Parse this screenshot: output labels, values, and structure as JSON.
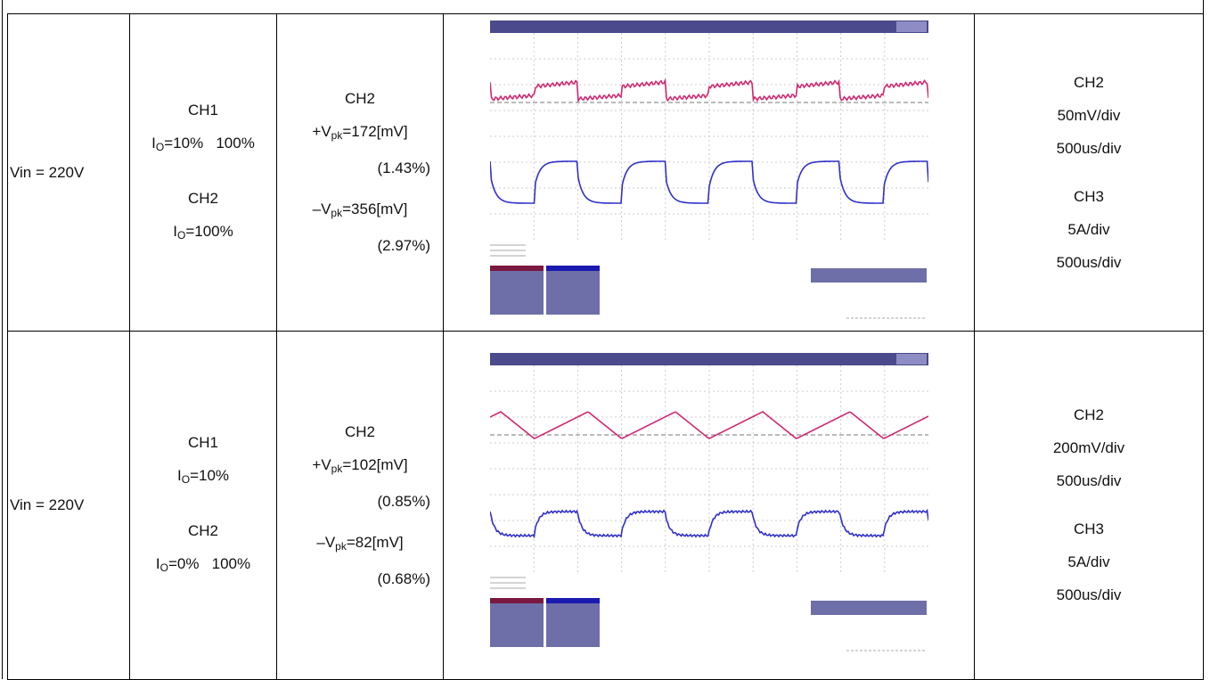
{
  "rows": [
    {
      "vin": "Vin = 220V",
      "load": [
        [
          {
            "text": "CH1"
          }
        ],
        [
          {
            "text": "I"
          },
          {
            "sub": "O"
          },
          {
            "text": "=10%   100%"
          }
        ],
        [
          {
            "text": "CH2"
          }
        ],
        [
          {
            "text": "I"
          },
          {
            "sub": "O"
          },
          {
            "text": "=100%"
          }
        ]
      ],
      "result": [
        [
          {
            "text": "CH2"
          }
        ],
        [
          {
            "text": "+V"
          },
          {
            "sub": "pk"
          },
          {
            "text": "=172[mV]"
          }
        ],
        [
          {
            "text": "(1.43%)"
          }
        ],
        [
          {
            "text": "–V"
          },
          {
            "sub": "pk"
          },
          {
            "text": "=356[mV]"
          }
        ],
        [
          {
            "text": "(2.97%)"
          }
        ]
      ],
      "scale": [
        "CH2",
        "50mV/div",
        "500us/div",
        "CH3",
        "5A/div",
        "500us/div"
      ]
    },
    {
      "vin": "Vin = 220V",
      "load": [
        [
          {
            "text": "CH1"
          }
        ],
        [
          {
            "text": "I"
          },
          {
            "sub": "O"
          },
          {
            "text": "=10%"
          }
        ],
        [
          {
            "text": "CH2"
          }
        ],
        [
          {
            "text": "I"
          },
          {
            "sub": "O"
          },
          {
            "text": "=0%   100%"
          }
        ]
      ],
      "result": [
        [
          {
            "text": "CH2"
          }
        ],
        [
          {
            "text": "+V"
          },
          {
            "sub": "pk"
          },
          {
            "text": "=102[mV]"
          }
        ],
        [
          {
            "text": "(0.85%)"
          }
        ],
        [
          {
            "text": "–V"
          },
          {
            "sub": "pk"
          },
          {
            "text": "=82[mV]"
          }
        ],
        [
          {
            "text": "(0.68%)"
          }
        ]
      ],
      "scale": [
        "CH2",
        "200mV/div",
        "500us/div",
        "CH3",
        "5A/div",
        "500us/div"
      ]
    }
  ]
}
